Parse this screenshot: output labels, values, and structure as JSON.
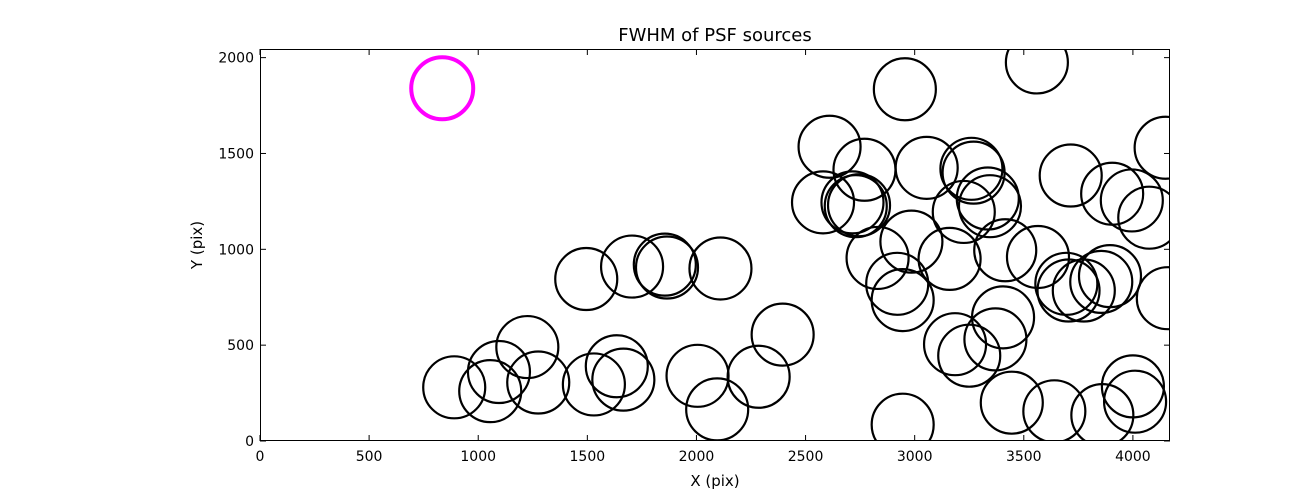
{
  "chart_data": {
    "type": "scatter",
    "title": "FWHM of PSF sources",
    "xlabel": "X (pix)",
    "ylabel": "Y (pix)",
    "xlim": [
      0,
      4170
    ],
    "ylim": [
      0,
      2045
    ],
    "xticks": [
      0,
      500,
      1000,
      1500,
      2000,
      2500,
      3000,
      3500,
      4000
    ],
    "yticks": [
      0,
      500,
      1000,
      1500,
      2000
    ],
    "grid": false,
    "marker": "open-circle",
    "series": [
      {
        "color": "#000000",
        "points": [
          [
            890,
            280
          ],
          [
            1055,
            260
          ],
          [
            1095,
            360
          ],
          [
            1225,
            490
          ],
          [
            1275,
            305
          ],
          [
            1495,
            845
          ],
          [
            1530,
            295
          ],
          [
            1635,
            390
          ],
          [
            1665,
            320
          ],
          [
            1705,
            910
          ],
          [
            1855,
            920
          ],
          [
            1865,
            905
          ],
          [
            2005,
            340
          ],
          [
            2095,
            165
          ],
          [
            2110,
            900
          ],
          [
            2285,
            335
          ],
          [
            2395,
            555
          ],
          [
            2580,
            1245
          ],
          [
            2610,
            1535
          ],
          [
            2715,
            1245
          ],
          [
            2730,
            1225
          ],
          [
            2745,
            1230
          ],
          [
            2770,
            1415
          ],
          [
            2830,
            955
          ],
          [
            2920,
            820
          ],
          [
            2945,
            735
          ],
          [
            2945,
            85
          ],
          [
            2955,
            1835
          ],
          [
            2985,
            1040
          ],
          [
            3055,
            1425
          ],
          [
            3160,
            950
          ],
          [
            3185,
            505
          ],
          [
            3225,
            1195
          ],
          [
            3250,
            445
          ],
          [
            3260,
            1420
          ],
          [
            3270,
            1400
          ],
          [
            3335,
            1265
          ],
          [
            3345,
            1225
          ],
          [
            3370,
            530
          ],
          [
            3405,
            645
          ],
          [
            3415,
            995
          ],
          [
            3445,
            200
          ],
          [
            3560,
            1975
          ],
          [
            3565,
            960
          ],
          [
            3640,
            155
          ],
          [
            3695,
            820
          ],
          [
            3705,
            785
          ],
          [
            3715,
            1385
          ],
          [
            3775,
            785
          ],
          [
            3855,
            830
          ],
          [
            3860,
            135
          ],
          [
            3895,
            860
          ],
          [
            3905,
            1290
          ],
          [
            3995,
            1255
          ],
          [
            4000,
            285
          ],
          [
            4010,
            205
          ],
          [
            4075,
            1165
          ],
          [
            4150,
            1530
          ],
          [
            4160,
            745
          ]
        ]
      },
      {
        "color": "#ff00ff",
        "points": [
          [
            835,
            1840
          ]
        ]
      }
    ]
  }
}
